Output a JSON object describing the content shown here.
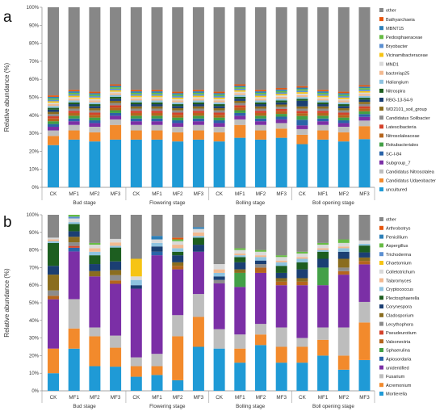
{
  "chart_data": [
    {
      "type": "bar",
      "stacked": true,
      "panel_label": "a",
      "ylabel": "Relative abundance (%)",
      "ylim": [
        0,
        100
      ],
      "yticks": [
        "0%",
        "10%",
        "20%",
        "30%",
        "40%",
        "50%",
        "60%",
        "70%",
        "80%",
        "90%",
        "100%"
      ],
      "categories": [
        "CK",
        "MF1",
        "MF2",
        "MF3",
        "CK",
        "MF1",
        "MF2",
        "MF3",
        "CK",
        "MF1",
        "MF2",
        "MF3",
        "CK",
        "MF1",
        "MF2",
        "MF3"
      ],
      "groups": [
        "Bud stage",
        "Flowering stage",
        "Bolling stage",
        "Boll opening stage"
      ],
      "legend_position": "right",
      "series": [
        {
          "name": "uncultured",
          "color": "#1f9ad6",
          "values": [
            23,
            26,
            25,
            26,
            26,
            26,
            25,
            26,
            25,
            27,
            26,
            27,
            23,
            26,
            25,
            26
          ]
        },
        {
          "name": "Candidatus Udaeobacter",
          "color": "#f28a2c",
          "values": [
            5,
            5,
            5,
            8,
            5,
            5,
            5,
            5,
            5,
            7,
            5,
            5,
            5,
            5,
            5,
            7
          ]
        },
        {
          "name": "Candidatus Nitrosotalea",
          "color": "#bdbdbd",
          "values": [
            3,
            3,
            3,
            3,
            3,
            3,
            3,
            3,
            3,
            3,
            3,
            3,
            3,
            3,
            3,
            3
          ]
        },
        {
          "name": "Subgroup_7",
          "color": "#7b2fa6",
          "values": [
            2,
            2,
            2,
            2,
            2,
            2,
            2,
            2,
            2,
            2,
            2,
            2,
            2,
            2,
            2,
            2
          ]
        },
        {
          "name": "SC-I-84",
          "color": "#2a64a8",
          "values": [
            1.5,
            1.5,
            1.5,
            1.5,
            1.5,
            1.5,
            1.5,
            1.5,
            1.5,
            1.5,
            1.5,
            1.5,
            3,
            1.5,
            1.5,
            1.5
          ]
        },
        {
          "name": "Rokubacteriales",
          "color": "#43a047",
          "values": [
            1.5,
            1.5,
            1.5,
            1.5,
            1.5,
            1.5,
            1.5,
            1.5,
            1.5,
            1.5,
            1.5,
            1.5,
            2,
            1.5,
            1.5,
            1.5
          ]
        },
        {
          "name": "Nitrosolaleaceae",
          "color": "#b5651d",
          "values": [
            1.5,
            1.5,
            1.5,
            1.5,
            1.5,
            1.5,
            1.5,
            1.5,
            1.5,
            1.5,
            1.5,
            1.5,
            1.5,
            1.5,
            1.5,
            1.5
          ]
        },
        {
          "name": "Latescibacteria",
          "color": "#d4422a",
          "values": [
            1.2,
            1.2,
            1.2,
            1.2,
            1.2,
            1.2,
            1.2,
            1.2,
            1.2,
            1.2,
            1.2,
            1.2,
            1.2,
            1.2,
            1.2,
            1.2
          ]
        },
        {
          "name": "Candidatus Solibacter",
          "color": "#8c8c8c",
          "values": [
            1.2,
            1.2,
            1.2,
            1.2,
            1.2,
            1.2,
            1.2,
            1.2,
            1.2,
            1.2,
            1.2,
            1.2,
            1.2,
            1.2,
            1.2,
            1.2
          ]
        },
        {
          "name": "WD2101_soil_group",
          "color": "#8a6d1f",
          "values": [
            1.2,
            1.2,
            1.2,
            1.2,
            1.2,
            1.2,
            1.2,
            1.2,
            1.2,
            1.2,
            1.2,
            1.2,
            1.2,
            1.2,
            1.2,
            1.2
          ]
        },
        {
          "name": "RBG-13-54-9",
          "color": "#1b3f73",
          "values": [
            1.2,
            1.2,
            1.2,
            1.2,
            1.2,
            1.2,
            1.2,
            1.2,
            1.2,
            1.2,
            1.2,
            1.2,
            3,
            1.2,
            1.2,
            1.2
          ]
        },
        {
          "name": "Nitrospira",
          "color": "#1d5e20",
          "values": [
            1,
            1,
            1,
            1,
            1,
            1,
            1,
            1,
            1,
            1,
            1,
            1,
            1,
            1,
            1,
            1
          ]
        },
        {
          "name": "Haliangium",
          "color": "#8ec3e0",
          "values": [
            1,
            1,
            1,
            1,
            1,
            1,
            1,
            1,
            1,
            1,
            1,
            1,
            1,
            1,
            1,
            1
          ]
        },
        {
          "name": "bacteriap25",
          "color": "#f2b990",
          "values": [
            1,
            1,
            1,
            1,
            1,
            1,
            1,
            1,
            1,
            1,
            1,
            1,
            1,
            1,
            1,
            1
          ]
        },
        {
          "name": "MND1",
          "color": "#d9d9d9",
          "values": [
            0.8,
            0.8,
            0.8,
            0.8,
            0.8,
            0.8,
            0.8,
            0.8,
            0.8,
            0.8,
            0.8,
            0.8,
            0.8,
            0.8,
            0.8,
            0.8
          ]
        },
        {
          "name": "Vicinamibacteraceae",
          "color": "#f6c414",
          "values": [
            0.8,
            0.8,
            0.8,
            0.8,
            0.8,
            0.8,
            0.8,
            0.8,
            0.8,
            0.8,
            0.8,
            0.8,
            0.8,
            0.8,
            0.8,
            0.8
          ]
        },
        {
          "name": "Bryobacter",
          "color": "#5b8fd1",
          "values": [
            0.8,
            0.8,
            0.8,
            0.8,
            0.8,
            0.8,
            0.8,
            0.8,
            0.8,
            0.8,
            0.8,
            0.8,
            0.8,
            0.8,
            0.8,
            0.8
          ]
        },
        {
          "name": "Pedosphaeraceae",
          "color": "#66bb44",
          "values": [
            0.8,
            0.8,
            0.8,
            0.8,
            0.8,
            0.8,
            0.8,
            0.8,
            0.8,
            0.8,
            0.8,
            0.8,
            0.8,
            0.8,
            0.8,
            0.8
          ]
        },
        {
          "name": "MBNT15",
          "color": "#2c7fb8",
          "values": [
            0.8,
            0.8,
            0.8,
            0.8,
            0.8,
            0.8,
            0.8,
            0.8,
            0.8,
            0.8,
            0.8,
            0.8,
            0.8,
            0.8,
            0.8,
            0.8
          ]
        },
        {
          "name": "Bathyarchaeia",
          "color": "#e6550d",
          "values": [
            0.8,
            0.8,
            0.8,
            0.8,
            0.8,
            0.8,
            0.8,
            0.8,
            0.8,
            0.8,
            0.8,
            0.8,
            0.8,
            0.8,
            0.8,
            0.8
          ]
        },
        {
          "name": "other",
          "color": "#878787",
          "values": [
            48,
            45,
            46,
            42,
            45,
            45,
            46,
            45,
            46,
            42,
            45,
            44,
            42,
            45,
            46,
            42
          ]
        }
      ]
    },
    {
      "type": "bar",
      "stacked": true,
      "panel_label": "b",
      "ylabel": "Relative abundance (%)",
      "ylim": [
        0,
        100
      ],
      "yticks": [
        "0%",
        "10%",
        "20%",
        "30%",
        "40%",
        "50%",
        "60%",
        "70%",
        "80%",
        "90%",
        "100%"
      ],
      "categories": [
        "CK",
        "MF1",
        "MF2",
        "MF3",
        "CK",
        "MF1",
        "MF2",
        "MF3",
        "CK",
        "MF1",
        "MF2",
        "MF3",
        "CK",
        "MF1",
        "MF2",
        "MF3"
      ],
      "groups": [
        "Bud stage",
        "Flowering stage",
        "Bolling stage",
        "Boll opening stage"
      ],
      "legend_position": "right",
      "series": [
        {
          "name": "Mortierella",
          "color": "#1f9ad6",
          "values": [
            10,
            23,
            14,
            14,
            8,
            9,
            6,
            25,
            24,
            16,
            26,
            16,
            16,
            20,
            12,
            18
          ]
        },
        {
          "name": "Acremonium",
          "color": "#f28a2c",
          "values": [
            14,
            11,
            17,
            11,
            6,
            5,
            25,
            17,
            0,
            8,
            6,
            9,
            9,
            9,
            8,
            22
          ]
        },
        {
          "name": "Fusarium",
          "color": "#bdbdbd",
          "values": [
            0,
            16,
            5,
            7,
            5,
            7,
            12,
            13,
            11,
            8,
            6,
            11,
            5,
            7,
            16,
            12
          ]
        },
        {
          "name": "unidentified",
          "color": "#7b2fa6",
          "values": [
            28,
            26,
            29,
            30,
            39,
            56,
            26,
            24,
            26,
            27,
            29,
            24,
            30,
            24,
            30,
            22
          ]
        },
        {
          "name": "Apiosordaria",
          "color": "#2a64a8",
          "values": [
            0,
            2,
            0,
            0,
            0,
            2,
            0,
            0,
            0,
            0,
            0,
            0,
            0,
            0,
            0,
            0
          ]
        },
        {
          "name": "Sphaerulina",
          "color": "#43a047",
          "values": [
            0,
            0,
            0,
            0,
            0,
            0,
            0,
            0,
            0,
            8,
            0,
            0,
            0,
            10,
            0,
            0
          ]
        },
        {
          "name": "Valsonectria",
          "color": "#b5651d",
          "values": [
            2,
            0,
            0,
            2,
            0,
            0,
            2,
            0,
            0,
            0,
            3,
            2,
            2,
            0,
            2,
            2
          ]
        },
        {
          "name": "Pseudeurotium",
          "color": "#d4422a",
          "values": [
            0,
            1,
            0,
            0,
            0,
            0,
            0,
            0,
            0,
            0,
            0,
            0,
            0,
            0,
            0,
            0
          ]
        },
        {
          "name": "Lecythophora",
          "color": "#8c8c8c",
          "values": [
            3,
            2,
            0,
            3,
            0,
            0,
            0,
            0,
            2,
            0,
            2,
            0,
            0,
            0,
            2,
            0
          ]
        },
        {
          "name": "Cladosporium",
          "color": "#8a6d1f",
          "values": [
            9,
            3,
            3,
            3,
            0,
            0,
            2,
            0,
            0,
            2,
            0,
            2,
            2,
            0,
            5,
            2
          ]
        },
        {
          "name": "Corynespora",
          "color": "#1b3f73",
          "values": [
            5,
            3,
            4,
            5,
            2,
            3,
            4,
            4,
            2,
            4,
            2,
            3,
            5,
            5,
            4,
            3
          ]
        },
        {
          "name": "Plectosphaerella",
          "color": "#1d5e20",
          "values": [
            13,
            4,
            5,
            8,
            0,
            0,
            2,
            4,
            0,
            3,
            0,
            4,
            4,
            4,
            0,
            4
          ]
        },
        {
          "name": "Cryptococcus",
          "color": "#8ec3e0",
          "values": [
            1,
            1,
            2,
            1,
            3,
            2,
            2,
            1,
            2,
            1,
            2,
            2,
            2,
            1,
            2,
            1
          ]
        },
        {
          "name": "Talaromyces",
          "color": "#f2b990",
          "values": [
            1,
            0,
            2,
            2,
            0,
            0,
            2,
            2,
            2,
            1,
            1,
            1,
            1,
            1,
            1,
            0
          ]
        },
        {
          "name": "Colletotrichum",
          "color": "#d9d9d9",
          "values": [
            1,
            2,
            2,
            2,
            2,
            2,
            2,
            2,
            3,
            2,
            2,
            2,
            2,
            2,
            2,
            2
          ]
        },
        {
          "name": "Chaetomium",
          "color": "#f6c414",
          "values": [
            0,
            0,
            0,
            0,
            10,
            0,
            0,
            0,
            0,
            0,
            0,
            0,
            0,
            0,
            0,
            0
          ]
        },
        {
          "name": "Trichoderma",
          "color": "#5b8fd1",
          "values": [
            0,
            1,
            0,
            0,
            0,
            0,
            0,
            0,
            0,
            0,
            0,
            0,
            0,
            0,
            0,
            0
          ]
        },
        {
          "name": "Aspergillus",
          "color": "#66bb44",
          "values": [
            0,
            1,
            1,
            0,
            0,
            0,
            1,
            0,
            0,
            1,
            1,
            1,
            1,
            1,
            2,
            0
          ]
        },
        {
          "name": "Penicillium",
          "color": "#2c7fb8",
          "values": [
            0,
            0,
            0,
            0,
            0,
            2,
            0,
            1,
            0,
            0,
            0,
            0,
            0,
            0,
            0,
            0
          ]
        },
        {
          "name": "Arthrobotrys",
          "color": "#e6550d",
          "values": [
            0,
            0,
            0,
            0,
            0,
            0,
            1,
            0,
            0,
            0,
            0,
            0,
            0,
            0,
            0,
            0
          ]
        },
        {
          "name": "other",
          "color": "#878787",
          "values": [
            13,
            0,
            16,
            14,
            25,
            12,
            13,
            7,
            28,
            19,
            20,
            23,
            21,
            16,
            14,
            15
          ]
        }
      ]
    }
  ]
}
